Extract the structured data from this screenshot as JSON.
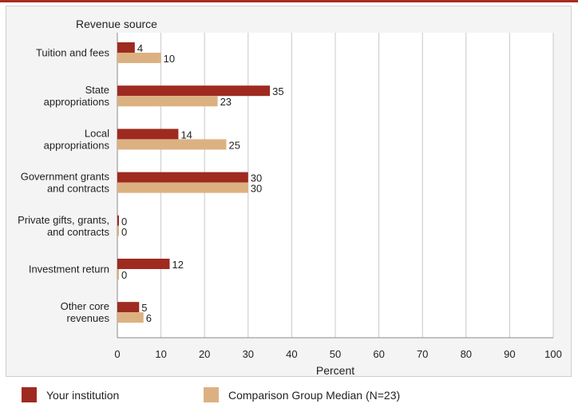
{
  "colors": {
    "your_institution": "#9e2a20",
    "comparison_median": "#dcb182",
    "grid": "#c8c8c8",
    "header_bar": "#a82c22"
  },
  "chart_data": {
    "type": "bar",
    "orientation": "horizontal",
    "category_axis_label": "Revenue source",
    "xlabel": "Percent",
    "xlim": [
      0,
      100
    ],
    "xticks": [
      0,
      10,
      20,
      30,
      40,
      50,
      60,
      70,
      80,
      90,
      100
    ],
    "grid": true,
    "legend_position": "bottom",
    "categories": [
      [
        "Tuition and fees"
      ],
      [
        "State",
        "appropriations"
      ],
      [
        "Local",
        "appropriations"
      ],
      [
        "Government grants",
        "and contracts"
      ],
      [
        "Private gifts, grants,",
        "and contracts"
      ],
      [
        "Investment return"
      ],
      [
        "Other core",
        "revenues"
      ]
    ],
    "series": [
      {
        "name": "Your institution",
        "values": [
          4,
          35,
          14,
          30,
          0,
          12,
          5
        ]
      },
      {
        "name": "Comparison Group Median (N=23)",
        "values": [
          10,
          23,
          25,
          30,
          0,
          0,
          6
        ]
      }
    ]
  }
}
